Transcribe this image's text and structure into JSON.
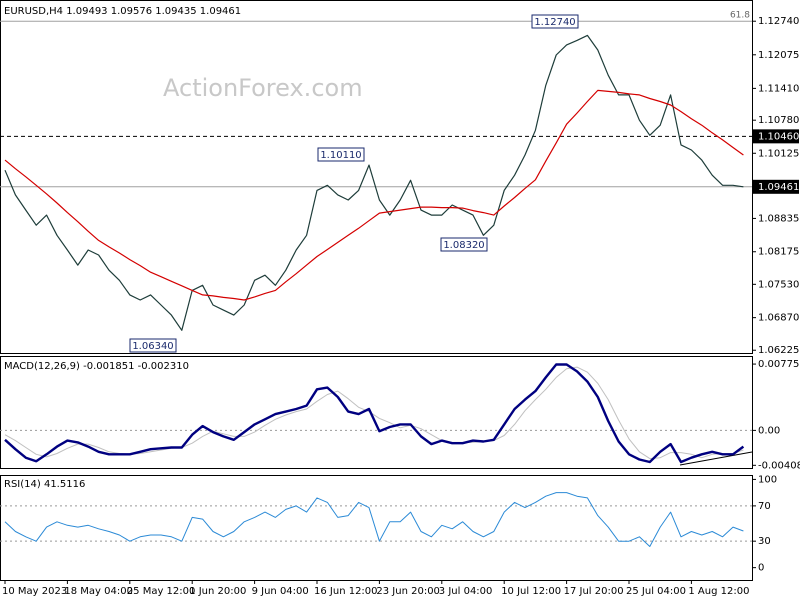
{
  "chart_data": [
    {
      "type": "line",
      "title": "EURUSD,H4  1.09493 1.09576 1.09435 1.09461",
      "watermark": "ActionForex.com",
      "ylim": [
        1.0617,
        1.1316
      ],
      "yticks": [
        {
          "value": 1.1274,
          "label": "1.12740"
        },
        1.12075,
        {
          "value": 1.1141,
          "label": "1.11410"
        },
        {
          "value": 1.1078,
          "label": "1.10780"
        },
        1.10125,
        1.08835,
        1.08175,
        {
          "value": 1.0753,
          "label": "1.07530"
        },
        {
          "value": 1.0687,
          "label": "1.06870"
        },
        1.06225
      ],
      "levels": [
        {
          "value": 1.1274,
          "label": "61.8",
          "style": "fib"
        },
        {
          "value": 1.1046,
          "label": "1.10460",
          "style": "dashed"
        },
        {
          "value": 1.09461,
          "style": "solid"
        }
      ],
      "annotations": [
        "1.12740",
        "1.10110",
        "1.08320",
        "1.06340"
      ],
      "series": [
        {
          "color": "#1e3d3a",
          "values": [
            1.0979,
            1.093,
            1.09,
            1.087,
            1.089,
            1.085,
            1.0821,
            1.0791,
            1.0821,
            1.0811,
            1.0781,
            1.0761,
            1.0732,
            1.0722,
            1.0732,
            1.0712,
            1.0692,
            1.0662,
            1.0741,
            1.0751,
            1.0712,
            1.0702,
            1.0692,
            1.0712,
            1.0761,
            1.0771,
            1.0751,
            1.0781,
            1.0821,
            1.085,
            1.0939,
            1.0949,
            1.093,
            1.092,
            1.0939,
            1.0989,
            1.092,
            1.089,
            1.092,
            1.0959,
            1.09,
            1.089,
            1.089,
            1.091,
            1.09,
            1.089,
            1.085,
            1.087,
            1.0939,
            1.0969,
            1.1009,
            1.1058,
            1.1147,
            1.1207,
            1.1227,
            1.1236,
            1.1246,
            1.1217,
            1.1167,
            1.1128,
            1.1128,
            1.1078,
            1.1048,
            1.1068,
            1.1128,
            1.1029,
            1.1019,
            1.0999,
            1.0969,
            1.0949,
            1.0949,
            1.09461
          ]
        },
        {
          "color": "#d40000",
          "values": [
            1.0999,
            1.0982,
            1.0966,
            1.0949,
            1.0932,
            1.0914,
            1.0895,
            1.0877,
            1.0858,
            1.084,
            1.0827,
            1.0815,
            1.0802,
            1.079,
            1.0777,
            1.0768,
            1.0759,
            1.075,
            1.0741,
            1.0732,
            1.073,
            1.0727,
            1.0725,
            1.0722,
            1.0728,
            1.0735,
            1.0741,
            1.0758,
            1.0774,
            1.0791,
            1.0808,
            1.0822,
            1.0836,
            1.085,
            1.0864,
            1.0879,
            1.0894,
            1.0897,
            1.09,
            1.0903,
            1.0906,
            1.0906,
            1.0905,
            1.0905,
            1.0904,
            1.0899,
            1.0895,
            1.089,
            1.0908,
            1.0925,
            1.0943,
            1.096,
            1.0997,
            1.1033,
            1.107,
            1.1092,
            1.1115,
            1.1137,
            1.1135,
            1.1133,
            1.113,
            1.1128,
            1.1121,
            1.1115,
            1.1108,
            1.1095,
            1.1081,
            1.1068,
            1.1053,
            1.1039,
            1.1024,
            1.1009
          ]
        }
      ]
    },
    {
      "type": "line",
      "title": "MACD(12,26,9) -0.001851 -0.002310",
      "ylim": [
        -0.0044,
        0.0087
      ],
      "yticks": [
        0.007756,
        {
          "value": 0,
          "label": "0.00"
        },
        -0.004086
      ],
      "levels": [
        {
          "value": 0,
          "style": "dotted"
        }
      ],
      "series": [
        {
          "color": "#c0c0c0",
          "width": 1,
          "values": [
            -0.0005,
            -0.0012,
            -0.002,
            -0.0028,
            -0.0031,
            -0.0027,
            -0.0021,
            -0.0016,
            -0.0016,
            -0.002,
            -0.0025,
            -0.0027,
            -0.0028,
            -0.0027,
            -0.0025,
            -0.0023,
            -0.0021,
            -0.002,
            -0.0015,
            -0.0007,
            -0.0001,
            -0.0004,
            -0.0007,
            -0.0007,
            -0.0002,
            0.0006,
            0.0013,
            0.0018,
            0.0022,
            0.0025,
            0.0034,
            0.0042,
            0.0046,
            0.0037,
            0.0027,
            0.0022,
            0.0014,
            0.0009,
            0.0003,
            0.0006,
            0.0002,
            -0.0005,
            -0.0012,
            -0.0014,
            -0.0014,
            -0.0014,
            -0.0013,
            -0.0012,
            -0.0006,
            0.0007,
            0.0023,
            0.0036,
            0.0048,
            0.0062,
            0.0072,
            0.0074,
            0.0068,
            0.0055,
            0.0036,
            0.0012,
            -0.001,
            -0.0025,
            -0.0033,
            -0.0032,
            -0.0026,
            -0.0026,
            -0.0028,
            -0.0032,
            -0.0028,
            -0.0027,
            -0.0027,
            -0.0023
          ]
        },
        {
          "color": "#000080",
          "width": 2.4,
          "values": [
            -0.0011,
            -0.0022,
            -0.0032,
            -0.0036,
            -0.0028,
            -0.0019,
            -0.0012,
            -0.0014,
            -0.0019,
            -0.0025,
            -0.0028,
            -0.0028,
            -0.0028,
            -0.0025,
            -0.0022,
            -0.0021,
            -0.002,
            -0.002,
            -0.0005,
            0.0005,
            -0.0002,
            -0.0007,
            -0.0011,
            -0.0002,
            0.0007,
            0.0013,
            0.0019,
            0.0022,
            0.0025,
            0.0029,
            0.0048,
            0.005,
            0.0039,
            0.0022,
            0.0019,
            0.0025,
            -0.0001,
            0.0004,
            0.0007,
            0.0007,
            -0.0007,
            -0.0016,
            -0.0012,
            -0.0015,
            -0.0015,
            -0.0012,
            -0.0013,
            -0.0011,
            0.0007,
            0.0025,
            0.0036,
            0.0046,
            0.0062,
            0.0077,
            0.0077,
            0.0069,
            0.0057,
            0.0039,
            0.0011,
            -0.0013,
            -0.0028,
            -0.0034,
            -0.0037,
            -0.0025,
            -0.0016,
            -0.0037,
            -0.0032,
            -0.0028,
            -0.0025,
            -0.0028,
            -0.0028,
            -0.0019
          ]
        }
      ]
    },
    {
      "type": "line",
      "title": "RSI(14) 41.5116",
      "ylim": [
        -14,
        105
      ],
      "yticks": [
        100,
        70,
        30,
        0
      ],
      "levels": [
        {
          "value": 70,
          "style": "dotted"
        },
        {
          "value": 30,
          "style": "dotted"
        }
      ],
      "categories": [
        "10 May 2023",
        null,
        null,
        null,
        null,
        null,
        "18 May 04:00",
        null,
        null,
        null,
        null,
        null,
        "25 May 12:00",
        null,
        null,
        null,
        null,
        null,
        "1 Jun 20:00",
        null,
        null,
        null,
        null,
        null,
        "9 Jun 04:00",
        null,
        null,
        null,
        null,
        null,
        "16 Jun 12:00",
        null,
        null,
        null,
        null,
        null,
        "23 Jun 20:00",
        null,
        null,
        null,
        null,
        null,
        "3 Jul 04:00",
        null,
        null,
        null,
        null,
        null,
        "10 Jul 12:00",
        null,
        null,
        null,
        null,
        null,
        "17 Jul 20:00",
        null,
        null,
        null,
        null,
        null,
        "25 Jul 04:00",
        null,
        null,
        null,
        null,
        null,
        "1 Aug 12:00",
        null,
        null,
        null,
        null,
        null
      ],
      "series": [
        {
          "color": "#2b8ad6",
          "width": 1,
          "values": [
            52,
            41,
            35,
            30,
            46,
            52,
            48,
            46,
            48,
            44,
            41,
            37,
            30,
            35,
            37,
            37,
            35,
            30,
            57,
            55,
            41,
            35,
            41,
            52,
            57,
            63,
            57,
            66,
            70,
            63,
            79,
            74,
            57,
            59,
            74,
            68,
            30,
            52,
            52,
            63,
            41,
            35,
            48,
            44,
            52,
            41,
            35,
            41,
            63,
            74,
            68,
            74,
            81,
            85,
            85,
            81,
            79,
            59,
            46,
            30,
            30,
            35,
            24,
            46,
            63,
            35,
            41,
            37,
            41,
            35,
            46,
            41.51
          ]
        }
      ]
    }
  ]
}
